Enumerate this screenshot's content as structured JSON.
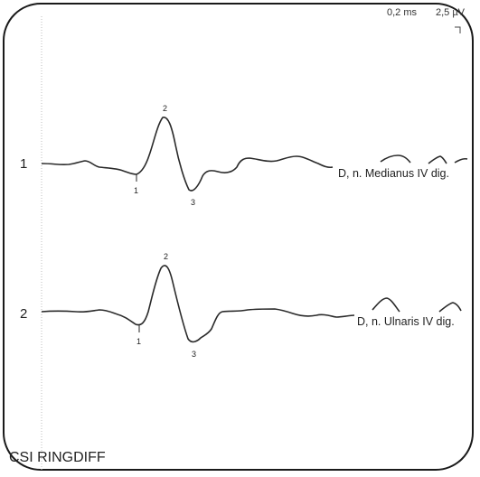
{
  "scale": {
    "time": "0,2 ms",
    "amplitude": "2,5 µV"
  },
  "traces": [
    {
      "row": "1",
      "name": "D, n. Medianus IV dig.",
      "markers": [
        "1",
        "2",
        "3"
      ]
    },
    {
      "row": "2",
      "name": "D, n. Ulnaris IV dig.",
      "markers": [
        "1",
        "2",
        "3"
      ]
    }
  ],
  "footer": {
    "title": "CSI RINGDIFF"
  },
  "colors": {
    "trace": "#2a2a2a",
    "frame": "#1a1a1a",
    "guide": "#bdbdbd"
  }
}
